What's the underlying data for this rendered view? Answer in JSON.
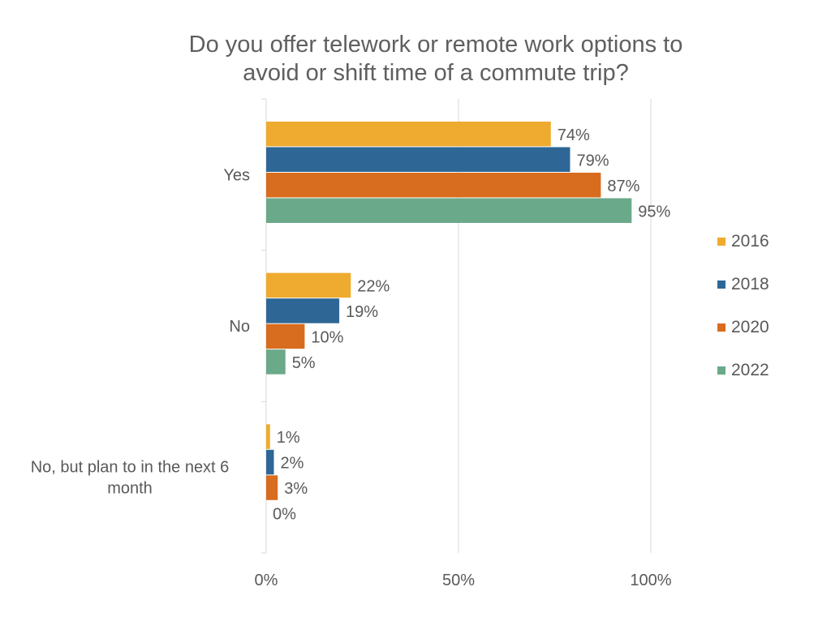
{
  "chart_data": {
    "type": "bar",
    "orientation": "horizontal",
    "title": [
      "Do you offer telework or remote work options to",
      "avoid or shift time of a commute trip?"
    ],
    "categories": [
      {
        "lines": [
          "Yes"
        ]
      },
      {
        "lines": [
          "No"
        ]
      },
      {
        "lines": [
          "No, but plan to in the next 6",
          "month"
        ]
      }
    ],
    "series": [
      {
        "name": "2016",
        "color": "#EEAB2F",
        "values": [
          74,
          22,
          1
        ]
      },
      {
        "name": "2018",
        "color": "#2E6796",
        "values": [
          79,
          19,
          2
        ]
      },
      {
        "name": "2020",
        "color": "#D86C1F",
        "values": [
          87,
          10,
          3
        ]
      },
      {
        "name": "2022",
        "color": "#6AA989",
        "values": [
          95,
          5,
          0
        ]
      }
    ],
    "data_labels": [
      [
        "74%",
        "22%",
        "1%"
      ],
      [
        "79%",
        "19%",
        "2%"
      ],
      [
        "87%",
        "10%",
        "3%"
      ],
      [
        "95%",
        "5%",
        "0%"
      ]
    ],
    "xlim": [
      0,
      100
    ],
    "xticks": [
      0,
      50,
      100
    ],
    "xtick_labels": [
      "0%",
      "50%",
      "100%"
    ],
    "grid": true,
    "legend_position": "right"
  }
}
